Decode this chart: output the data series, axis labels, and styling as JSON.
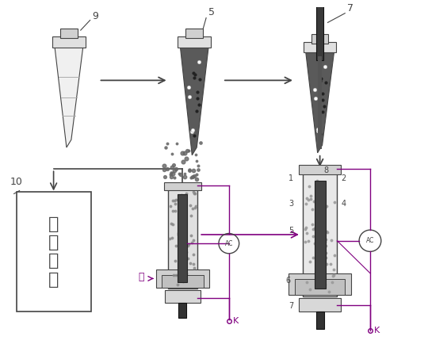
{
  "bg_color": "#ffffff",
  "lc": "#444444",
  "dg": "#333333",
  "mg": "#888888",
  "lg": "#cccccc",
  "purple": "#800080",
  "dark_fill": "#666666",
  "dot_fill": "#555555",
  "fig_width": 5.4,
  "fig_height": 4.34,
  "label9": "9",
  "label5": "5",
  "label7": "7",
  "label10": "10",
  "label_K": "K",
  "label_AC": "AC",
  "label_qi": "气",
  "label_jiance": "检\n测\n仪\n器"
}
